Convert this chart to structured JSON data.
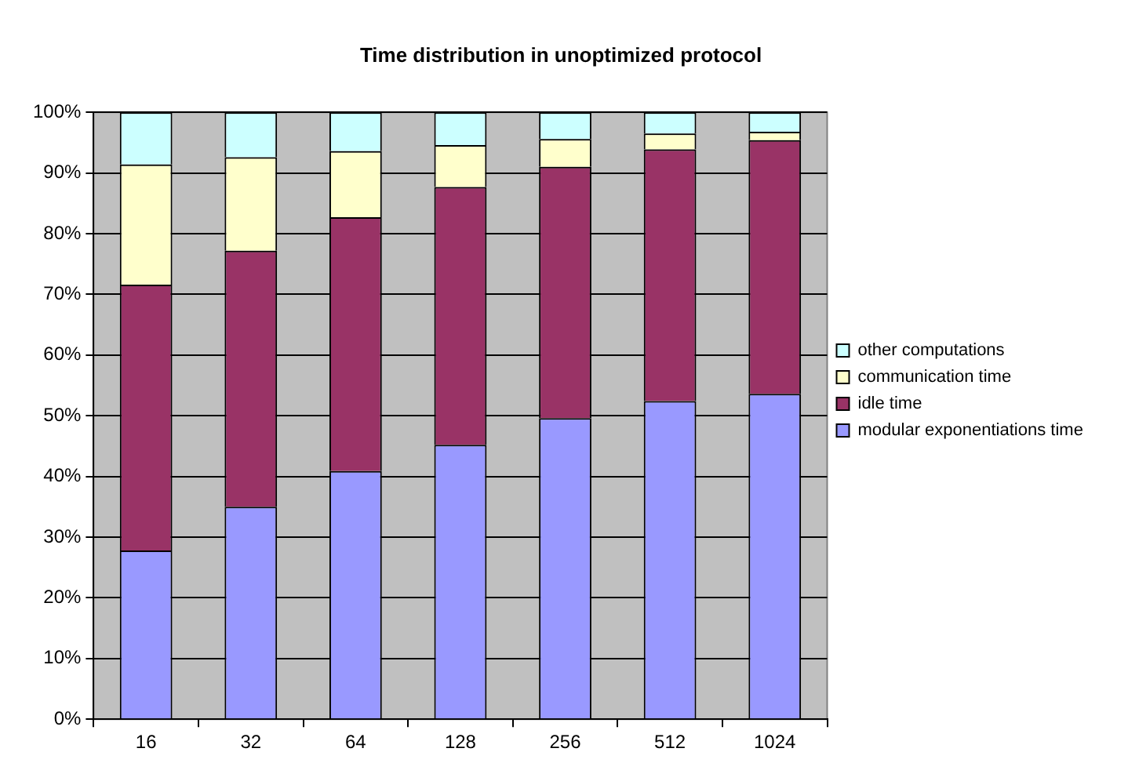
{
  "chart_data": {
    "type": "bar",
    "title": "Time distribution in unoptimized protocol",
    "stacked": true,
    "categories": [
      "16",
      "32",
      "64",
      "128",
      "256",
      "512",
      "1024"
    ],
    "series": [
      {
        "name": "modular exponentiations time",
        "color": "#9999ff",
        "values": [
          27.8,
          35.0,
          40.9,
          45.2,
          49.6,
          52.4,
          53.6
        ]
      },
      {
        "name": "idle time",
        "color": "#993366",
        "values": [
          43.8,
          42.2,
          41.8,
          42.5,
          41.4,
          41.5,
          41.8
        ]
      },
      {
        "name": "communication time",
        "color": "#ffffcc",
        "values": [
          19.8,
          15.4,
          10.9,
          6.9,
          4.6,
          2.6,
          1.4
        ]
      },
      {
        "name": "other computations",
        "color": "#ccffff",
        "values": [
          8.6,
          7.4,
          6.4,
          5.4,
          4.4,
          3.5,
          3.2
        ]
      }
    ],
    "ylim": [
      0,
      100
    ],
    "yticks": [
      {
        "value": 0,
        "label": "0%"
      },
      {
        "value": 10,
        "label": "10%"
      },
      {
        "value": 20,
        "label": "20%"
      },
      {
        "value": 30,
        "label": "30%"
      },
      {
        "value": 40,
        "label": "40%"
      },
      {
        "value": 50,
        "label": "50%"
      },
      {
        "value": 60,
        "label": "60%"
      },
      {
        "value": 70,
        "label": "70%"
      },
      {
        "value": 80,
        "label": "80%"
      },
      {
        "value": 90,
        "label": "90%"
      },
      {
        "value": 100,
        "label": "100%"
      }
    ],
    "grid": "y",
    "legend": "right"
  }
}
